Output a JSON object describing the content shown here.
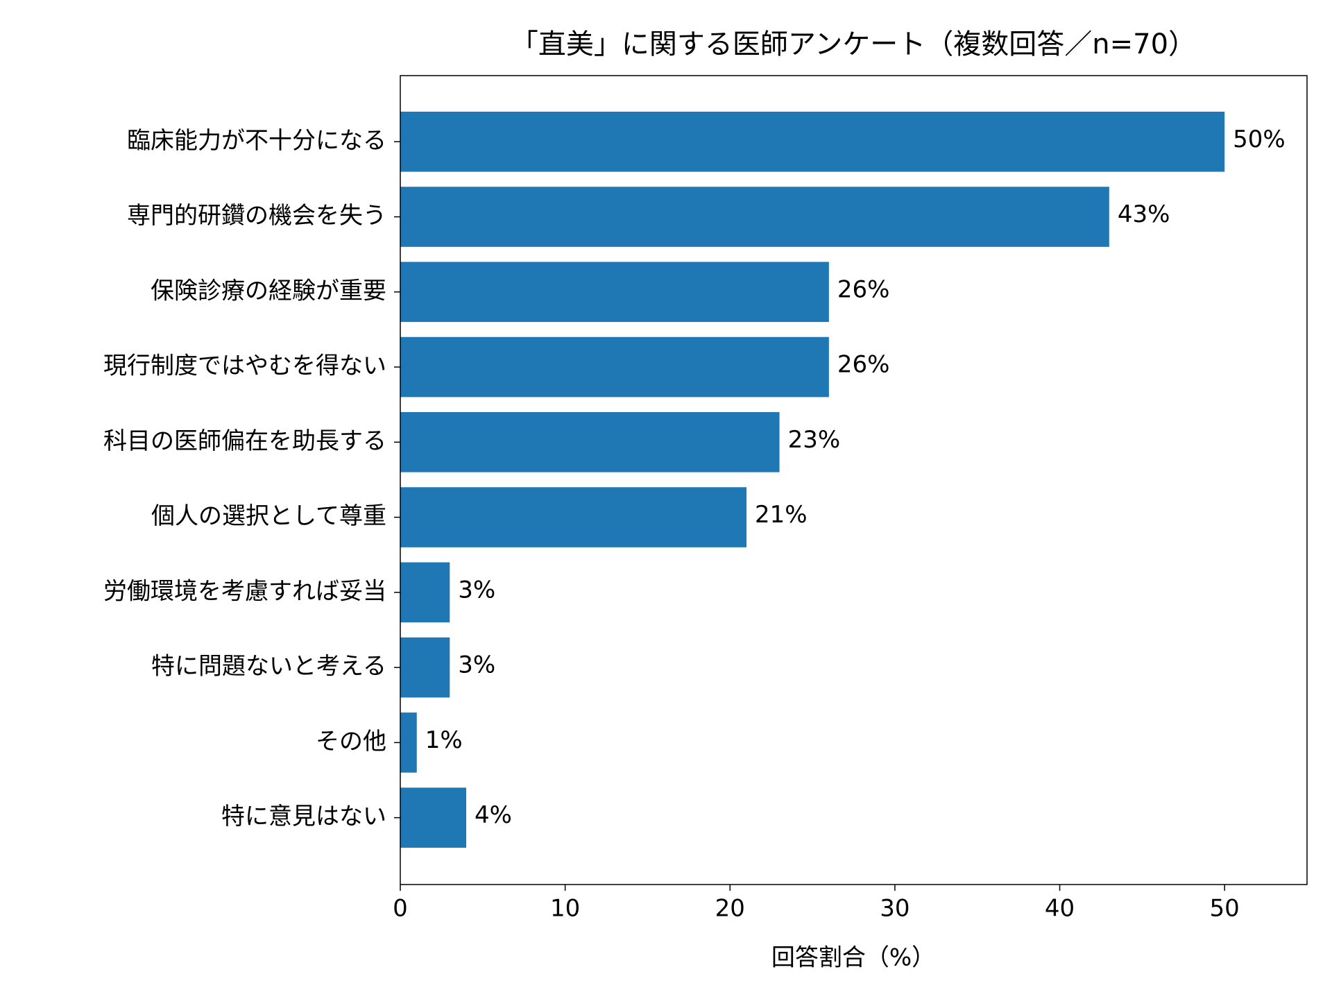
{
  "chart_data": {
    "type": "barh",
    "title": "「直美」に関する医師アンケート（複数回答／n=70）",
    "xlabel": "回答割合（%）",
    "categories": [
      "臨床能力が不十分になる",
      "専門的研鑽の機会を失う",
      "保険診療の経験が重要",
      "現行制度ではやむを得ない",
      "科目の医師偏在を助長する",
      "個人の選択として尊重",
      "労働環境を考慮すれば妥当",
      "特に問題ないと考える",
      "その他",
      "特に意見はない"
    ],
    "values": [
      50,
      43,
      26,
      26,
      23,
      21,
      3,
      3,
      1,
      4
    ],
    "value_labels": [
      "50%",
      "43%",
      "26%",
      "26%",
      "23%",
      "21%",
      "3%",
      "3%",
      "1%",
      "4%"
    ],
    "color": "#1f77b4",
    "xlim": [
      0,
      55
    ],
    "xticks": [
      0,
      10,
      20,
      30,
      40,
      50
    ],
    "grid": false
  }
}
